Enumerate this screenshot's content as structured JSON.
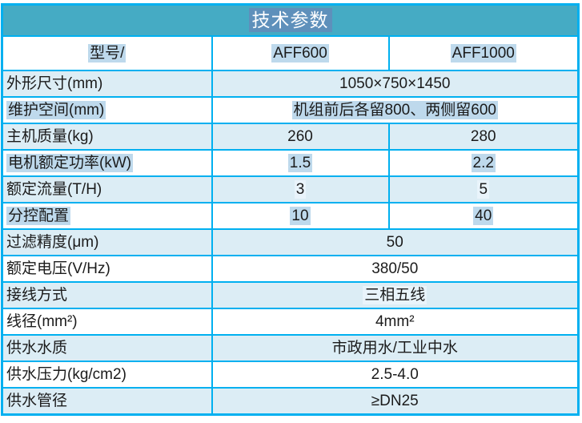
{
  "colors": {
    "teal": "#45abc4",
    "border": "#00b0f0",
    "stripe": "#dcedf5",
    "selection": "#bed9ec",
    "selection_light": "#e9f4fb",
    "selection_dark": "#5e90bb"
  },
  "header": {
    "title": "技术参数",
    "title_selected": true
  },
  "table": {
    "rows": [
      {
        "label": "型号/",
        "label_hl": true,
        "v1": "AFF600",
        "v1_hl": true,
        "v2": "AFF1000",
        "v2_hl": true
      },
      {
        "label": "外形尺寸(mm)",
        "value": "1050×750×1450"
      },
      {
        "label": "维护空间(mm)",
        "label_hl": true,
        "value": "机组前后各留800、两侧留600",
        "value_hl": true
      },
      {
        "label": "主机质量(kg)",
        "v1": "260",
        "v2": "280"
      },
      {
        "label": "电机额定功率(kW)",
        "label_hl": true,
        "v1": "1.5",
        "v1_hl": true,
        "v2": "2.2",
        "v2_hl": true
      },
      {
        "label": "额定流量(T/H)",
        "v1": "3",
        "v1_hl": true,
        "v2": "5",
        "v2_hl": true
      },
      {
        "label": "分控配置",
        "label_hl": true,
        "v1": "10",
        "v1_hl": true,
        "v2": "40",
        "v2_hl": true
      },
      {
        "label": "过滤精度(μm)",
        "value": "50"
      },
      {
        "label": "额定电压(V/Hz)",
        "value": "380/50"
      },
      {
        "label": "接线方式",
        "value": "三相五线",
        "value_hl": true
      },
      {
        "label": "线径(mm²)",
        "value": "4mm²"
      },
      {
        "label": "供水水质",
        "value": "市政用水/工业中水"
      },
      {
        "label": "供水压力(kg/cm2)",
        "value": "2.5-4.0"
      },
      {
        "label": "供水管径",
        "value": "≥DN25"
      }
    ]
  }
}
